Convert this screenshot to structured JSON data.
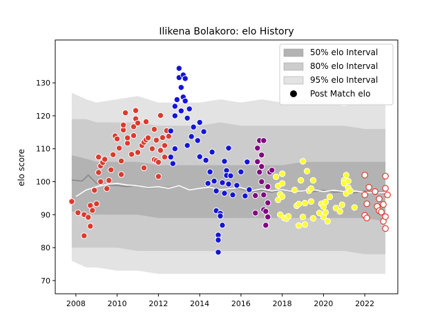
{
  "chart_data": {
    "type": "scatter",
    "title": "Ilikena Bolakoro: elo History",
    "xlabel": "",
    "ylabel": "elo score",
    "xlim": [
      2007.0,
      2023.6
    ],
    "ylim": [
      66,
      143
    ],
    "xticks": [
      2008,
      2010,
      2012,
      2014,
      2016,
      2018,
      2020,
      2022
    ],
    "yticks": [
      70,
      80,
      90,
      100,
      110,
      120,
      130
    ],
    "grid": false,
    "legend_position": "top-right",
    "legend": [
      {
        "label": "50% elo Interval",
        "kind": "patch",
        "color": "#b3b3b3"
      },
      {
        "label": "80% elo Interval",
        "kind": "patch",
        "color": "#cccccc"
      },
      {
        "label": "95% elo Interval",
        "kind": "patch",
        "color": "#e3e3e3"
      },
      {
        "label": "Post Match elo",
        "kind": "marker",
        "color": "#000000"
      }
    ],
    "colors": {
      "band95": "#e3e3e3",
      "band80": "#cccccc",
      "band50": "#b3b3b3",
      "mean_line": "#888888",
      "median_line": "#ffffff"
    },
    "bands": {
      "x": [
        2007.8,
        2008.5,
        2009.0,
        2010.0,
        2011.0,
        2012.0,
        2013.0,
        2014.0,
        2015.0,
        2016.0,
        2017.0,
        2018.0,
        2019.0,
        2020.0,
        2021.0,
        2022.0,
        2023.0
      ],
      "b95_hi": [
        127,
        125,
        124,
        125,
        126,
        124,
        124,
        124,
        125,
        124,
        125,
        124,
        125,
        124,
        123,
        124,
        124
      ],
      "b95_lo": [
        76,
        74,
        74,
        73,
        73,
        72,
        72,
        72,
        72,
        72,
        72,
        72,
        72,
        72,
        72,
        72,
        72
      ],
      "b80_hi": [
        119,
        119,
        118,
        118,
        118,
        117,
        117,
        117,
        118,
        117,
        117,
        117,
        117,
        117,
        117,
        116,
        116
      ],
      "b80_lo": [
        80,
        80,
        80,
        80,
        79,
        79,
        79,
        79,
        79,
        79,
        79,
        79,
        79,
        79,
        79,
        78,
        78
      ],
      "b50_hi": [
        108,
        107,
        106,
        106,
        106,
        105,
        105,
        105,
        105,
        105,
        105,
        105,
        106,
        106,
        106,
        106,
        106
      ],
      "b50_lo": [
        91,
        90,
        90,
        90,
        90,
        89,
        89,
        89,
        89,
        89,
        89,
        89,
        89,
        89,
        89,
        89,
        88
      ]
    },
    "lines": [
      {
        "role": "mean",
        "x": [
          2007.8,
          2008.3,
          2008.6,
          2009.0,
          2009.5,
          2010.0,
          2010.5,
          2011.0,
          2011.5,
          2012.0,
          2012.5,
          2013.0,
          2013.5,
          2014.0,
          2014.5,
          2015.0,
          2015.5,
          2016.0,
          2016.5,
          2017.0,
          2017.5,
          2018.0,
          2018.5,
          2019.0,
          2019.5,
          2020.0,
          2020.5,
          2021.0,
          2021.5,
          2022.0,
          2022.5,
          2023.0
        ],
        "y": [
          100.5,
          100.2,
          102.0,
          99.5,
          99.0,
          98.8,
          98.5,
          99.0,
          98.0,
          98.5,
          98.2,
          98.8,
          97.5,
          98.0,
          98.6,
          97.6,
          98.2,
          97.8,
          97.0,
          97.4,
          96.8,
          97.6,
          96.8,
          97.2,
          97.0,
          97.4,
          96.8,
          97.0,
          96.6,
          97.2,
          96.8,
          97.0
        ]
      },
      {
        "role": "median",
        "x": [
          2008.0,
          2008.5,
          2009.0,
          2009.5,
          2010.0,
          2010.5,
          2011.0,
          2011.5,
          2012.0,
          2012.5,
          2013.0,
          2013.5,
          2014.0,
          2014.5,
          2015.0,
          2015.5,
          2016.0,
          2016.5,
          2017.0,
          2017.5,
          2018.0,
          2018.5,
          2019.0,
          2019.5,
          2020.0,
          2020.5,
          2021.0,
          2021.5,
          2022.0,
          2022.5,
          2023.0
        ],
        "y": [
          95.5,
          97.5,
          98.5,
          99.2,
          99.5,
          99.0,
          98.8,
          98.2,
          98.5,
          98.0,
          98.8,
          97.5,
          98.0,
          98.4,
          97.6,
          98.0,
          98.2,
          97.2,
          97.8,
          97.2,
          97.6,
          97.0,
          97.2,
          97.6,
          97.0,
          97.4,
          97.0,
          97.2,
          96.8,
          96.6,
          96.8
        ]
      }
    ],
    "series": [
      {
        "color": "#dd3a2e",
        "fill": true,
        "points": [
          [
            2007.8,
            94
          ],
          [
            2008.1,
            90.6
          ],
          [
            2008.4,
            83.6
          ],
          [
            2008.4,
            90.0
          ],
          [
            2008.6,
            89.2
          ],
          [
            2008.7,
            86.5
          ],
          [
            2008.7,
            92.8
          ],
          [
            2008.8,
            91.3
          ],
          [
            2008.9,
            97.4
          ],
          [
            2009.0,
            93.3
          ],
          [
            2009.1,
            102.8
          ],
          [
            2009.1,
            107.5
          ],
          [
            2009.2,
            104.8
          ],
          [
            2009.2,
            100.0
          ],
          [
            2009.3,
            105.8
          ],
          [
            2009.4,
            106.8
          ],
          [
            2009.5,
            97.9
          ],
          [
            2009.6,
            100.4
          ],
          [
            2009.7,
            103.6
          ],
          [
            2009.8,
            108.2
          ],
          [
            2009.9,
            113.9
          ],
          [
            2010.0,
            113.0
          ],
          [
            2010.1,
            110.2
          ],
          [
            2010.2,
            102.2
          ],
          [
            2010.2,
            106.3
          ],
          [
            2010.3,
            115.7
          ],
          [
            2010.3,
            117.2
          ],
          [
            2010.4,
            120.9
          ],
          [
            2010.5,
            111.7
          ],
          [
            2010.5,
            113.3
          ],
          [
            2010.7,
            108.3
          ],
          [
            2010.8,
            114.0
          ],
          [
            2010.8,
            116.7
          ],
          [
            2010.9,
            121.6
          ],
          [
            2010.9,
            119.1
          ],
          [
            2011.0,
            117.8
          ],
          [
            2011.0,
            108.9
          ],
          [
            2011.2,
            111.0
          ],
          [
            2011.3,
            112.0
          ],
          [
            2011.3,
            104.2
          ],
          [
            2011.4,
            118.2
          ],
          [
            2011.4,
            112.7
          ],
          [
            2011.5,
            113.3
          ],
          [
            2011.7,
            110.0
          ],
          [
            2011.8,
            115.9
          ],
          [
            2011.8,
            106.7
          ],
          [
            2011.9,
            106.4
          ],
          [
            2011.9,
            112.6
          ],
          [
            2012.0,
            101.6
          ],
          [
            2012.0,
            105.9
          ],
          [
            2012.1,
            109.5
          ],
          [
            2012.1,
            120.1
          ],
          [
            2012.2,
            113.4
          ],
          [
            2012.3,
            111.0
          ],
          [
            2012.4,
            115.5
          ],
          [
            2012.5,
            113.8
          ],
          [
            2012.3,
            107.5
          ]
        ]
      },
      {
        "color": "#1414d8",
        "fill": true,
        "points": [
          [
            2012.6,
            107.5
          ],
          [
            2012.6,
            115.4
          ],
          [
            2012.7,
            105.5
          ],
          [
            2012.8,
            110.0
          ],
          [
            2012.8,
            122.9
          ],
          [
            2012.8,
            120.0
          ],
          [
            2012.9,
            124.9
          ],
          [
            2013.0,
            131.6
          ],
          [
            2013.0,
            134.4
          ],
          [
            2013.1,
            128.6
          ],
          [
            2013.1,
            121.5
          ],
          [
            2013.2,
            132.4
          ],
          [
            2013.2,
            125.7
          ],
          [
            2013.3,
            131.3
          ],
          [
            2013.3,
            124.5
          ],
          [
            2013.4,
            119.3
          ],
          [
            2013.4,
            111.0
          ],
          [
            2013.5,
            122.1
          ],
          [
            2013.6,
            113.7
          ],
          [
            2013.7,
            116.6
          ],
          [
            2013.9,
            112.5
          ],
          [
            2014.0,
            118.0
          ],
          [
            2014.0,
            107.6
          ],
          [
            2014.2,
            115.2
          ],
          [
            2014.3,
            106.5
          ],
          [
            2014.4,
            99.5
          ],
          [
            2014.5,
            103.0
          ],
          [
            2014.6,
            109.0
          ],
          [
            2014.7,
            100.2
          ],
          [
            2014.8,
            97.2
          ],
          [
            2014.8,
            91.2
          ],
          [
            2014.9,
            83.8
          ],
          [
            2014.9,
            82.3
          ],
          [
            2014.9,
            78.6
          ],
          [
            2015.0,
            90.4
          ],
          [
            2015.0,
            89.6
          ],
          [
            2015.1,
            99.7
          ],
          [
            2015.1,
            86.8
          ],
          [
            2015.2,
            96.5
          ],
          [
            2015.2,
            106.2
          ],
          [
            2015.3,
            103.4
          ],
          [
            2015.3,
            101.9
          ],
          [
            2015.4,
            99.3
          ],
          [
            2015.4,
            110.2
          ],
          [
            2015.5,
            101.8
          ],
          [
            2015.6,
            96.0
          ],
          [
            2015.8,
            98.9
          ],
          [
            2016.0,
            103.0
          ],
          [
            2016.2,
            95.7
          ],
          [
            2016.3,
            106.0
          ],
          [
            2016.4,
            97.6
          ]
        ]
      },
      {
        "color": "#800080",
        "fill": true,
        "points": [
          [
            2016.7,
            90.5
          ],
          [
            2016.7,
            95.8
          ],
          [
            2016.8,
            110.2
          ],
          [
            2016.8,
            106.1
          ],
          [
            2016.9,
            112.5
          ],
          [
            2016.9,
            102.9
          ],
          [
            2017.0,
            100.0
          ],
          [
            2017.0,
            108.1
          ],
          [
            2017.0,
            104.6
          ],
          [
            2017.1,
            96.0
          ],
          [
            2017.1,
            112.5
          ],
          [
            2017.1,
            91.5
          ],
          [
            2017.2,
            86.8
          ],
          [
            2017.2,
            91.0
          ],
          [
            2017.3,
            89.3
          ],
          [
            2017.3,
            93.6
          ],
          [
            2017.3,
            98.5
          ],
          [
            2017.4,
            102.9
          ],
          [
            2017.5,
            103.5
          ]
        ]
      },
      {
        "color": "#ffff30",
        "fill": true,
        "points": [
          [
            2017.7,
            101.5
          ],
          [
            2017.8,
            98.7
          ],
          [
            2017.8,
            94.5
          ],
          [
            2017.9,
            96.2
          ],
          [
            2017.9,
            90.0
          ],
          [
            2018.0,
            102.4
          ],
          [
            2018.0,
            99.5
          ],
          [
            2018.0,
            95.5
          ],
          [
            2018.1,
            89.0
          ],
          [
            2018.2,
            88.8
          ],
          [
            2018.3,
            89.5
          ],
          [
            2018.6,
            97.5
          ],
          [
            2018.7,
            92.7
          ],
          [
            2018.8,
            86.7
          ],
          [
            2018.8,
            93.2
          ],
          [
            2018.9,
            100.4
          ],
          [
            2019.0,
            106.2
          ],
          [
            2019.0,
            89.3
          ],
          [
            2019.1,
            87.0
          ],
          [
            2019.1,
            93.5
          ],
          [
            2019.2,
            103.2
          ],
          [
            2019.3,
            97.3
          ],
          [
            2019.4,
            94.0
          ],
          [
            2019.4,
            97.9
          ],
          [
            2019.5,
            88.9
          ],
          [
            2019.5,
            100.4
          ],
          [
            2019.8,
            90.5
          ],
          [
            2019.9,
            93.3
          ],
          [
            2020.0,
            92.4
          ],
          [
            2020.0,
            89.3
          ],
          [
            2020.1,
            93.8
          ],
          [
            2020.1,
            90.7
          ],
          [
            2020.2,
            88.0
          ],
          [
            2020.3,
            95.4
          ],
          [
            2020.6,
            92.0
          ],
          [
            2020.8,
            91.0
          ],
          [
            2020.9,
            93.0
          ],
          [
            2021.0,
            100.4
          ],
          [
            2021.0,
            99.5
          ],
          [
            2021.1,
            96.4
          ],
          [
            2021.1,
            102.0
          ],
          [
            2021.2,
            100.2
          ],
          [
            2021.2,
            98.2
          ],
          [
            2021.3,
            97.2
          ],
          [
            2021.5,
            92.2
          ]
        ]
      },
      {
        "color": "#dd3a2e",
        "fill": false,
        "points": [
          [
            2022.0,
            102.0
          ],
          [
            2022.0,
            96.0
          ],
          [
            2022.0,
            89.8
          ],
          [
            2022.1,
            93.3
          ],
          [
            2022.1,
            89.0
          ],
          [
            2022.2,
            98.3
          ],
          [
            2022.6,
            92.5
          ],
          [
            2022.7,
            94.8
          ],
          [
            2022.7,
            91.2
          ],
          [
            2022.8,
            90.8
          ],
          [
            2022.9,
            88.0
          ],
          [
            2022.9,
            93.1
          ],
          [
            2023.0,
            89.4
          ],
          [
            2023.0,
            85.8
          ],
          [
            2023.0,
            101.7
          ],
          [
            2023.0,
            98.0
          ],
          [
            2023.1,
            96.0
          ],
          [
            2022.5,
            97.0
          ]
        ]
      }
    ]
  }
}
